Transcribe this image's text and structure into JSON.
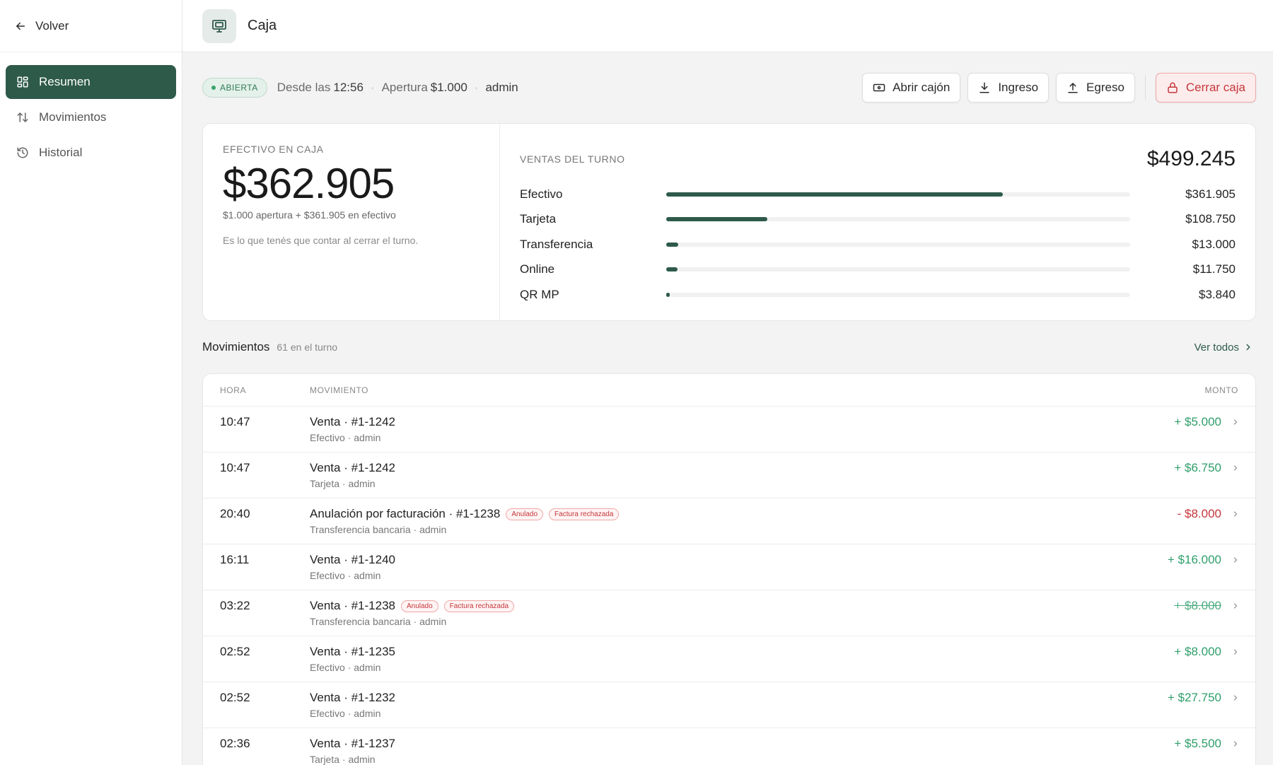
{
  "sidebar": {
    "back_label": "Volver",
    "items": [
      {
        "label": "Resumen",
        "active": true
      },
      {
        "label": "Movimientos",
        "active": false
      },
      {
        "label": "Historial",
        "active": false
      }
    ]
  },
  "topbar": {
    "title": "Caja"
  },
  "status": {
    "badge": "ABIERTA",
    "since_prefix": "Desde las",
    "since_time": "12:56",
    "opening_prefix": "Apertura",
    "opening_amount": "$1.000",
    "user": "admin"
  },
  "actions": {
    "open_drawer": "Abrir cajón",
    "income": "Ingreso",
    "expense": "Egreso",
    "close_register": "Cerrar caja"
  },
  "cash": {
    "label": "EFECTIVO EN CAJA",
    "amount": "$362.905",
    "breakdown": "$1.000 apertura + $361.905 en efectivo",
    "note": "Es lo que tenés que contar al cerrar el turno."
  },
  "sales": {
    "label": "VENTAS DEL TURNO",
    "total": "$499.245",
    "rows": [
      {
        "name": "Efectivo",
        "value": "$361.905",
        "share": 0.725
      },
      {
        "name": "Tarjeta",
        "value": "$108.750",
        "share": 0.218
      },
      {
        "name": "Transferencia",
        "value": "$13.000",
        "share": 0.026
      },
      {
        "name": "Online",
        "value": "$11.750",
        "share": 0.024
      },
      {
        "name": "QR MP",
        "value": "$3.840",
        "share": 0.008
      }
    ]
  },
  "movements": {
    "title": "Movimientos",
    "count": "61 en el turno",
    "see_all": "Ver todos",
    "columns": {
      "time": "HORA",
      "movement": "MOVIMIENTO",
      "amount": "MONTO"
    },
    "rows": [
      {
        "time": "10:47",
        "title": "Venta · #1-1242",
        "sub": "Efectivo · admin",
        "amount": "+ $5.000",
        "kind": "pos",
        "tags": []
      },
      {
        "time": "10:47",
        "title": "Venta · #1-1242",
        "sub": "Tarjeta · admin",
        "amount": "+ $6.750",
        "kind": "pos",
        "tags": []
      },
      {
        "time": "20:40",
        "title": "Anulación por facturación · #1-1238",
        "sub": "Transferencia bancaria · admin",
        "amount": "- $8.000",
        "kind": "neg",
        "tags": [
          "Anulado",
          "Factura rechazada"
        ]
      },
      {
        "time": "16:11",
        "title": "Venta · #1-1240",
        "sub": "Efectivo · admin",
        "amount": "+ $16.000",
        "kind": "pos",
        "tags": []
      },
      {
        "time": "03:22",
        "title": "Venta · #1-1238",
        "sub": "Transferencia bancaria · admin",
        "amount": "+ $8.000",
        "kind": "strike",
        "tags": [
          "Anulado",
          "Factura rechazada"
        ]
      },
      {
        "time": "02:52",
        "title": "Venta · #1-1235",
        "sub": "Efectivo · admin",
        "amount": "+ $8.000",
        "kind": "pos",
        "tags": []
      },
      {
        "time": "02:52",
        "title": "Venta · #1-1232",
        "sub": "Efectivo · admin",
        "amount": "+ $27.750",
        "kind": "pos",
        "tags": []
      },
      {
        "time": "02:36",
        "title": "Venta · #1-1237",
        "sub": "Tarjeta · admin",
        "amount": "+ $5.500",
        "kind": "pos",
        "tags": []
      }
    ]
  },
  "colors": {
    "accent": "#2e5a4a",
    "positive": "#2f9e6a",
    "negative": "#c5363a"
  }
}
